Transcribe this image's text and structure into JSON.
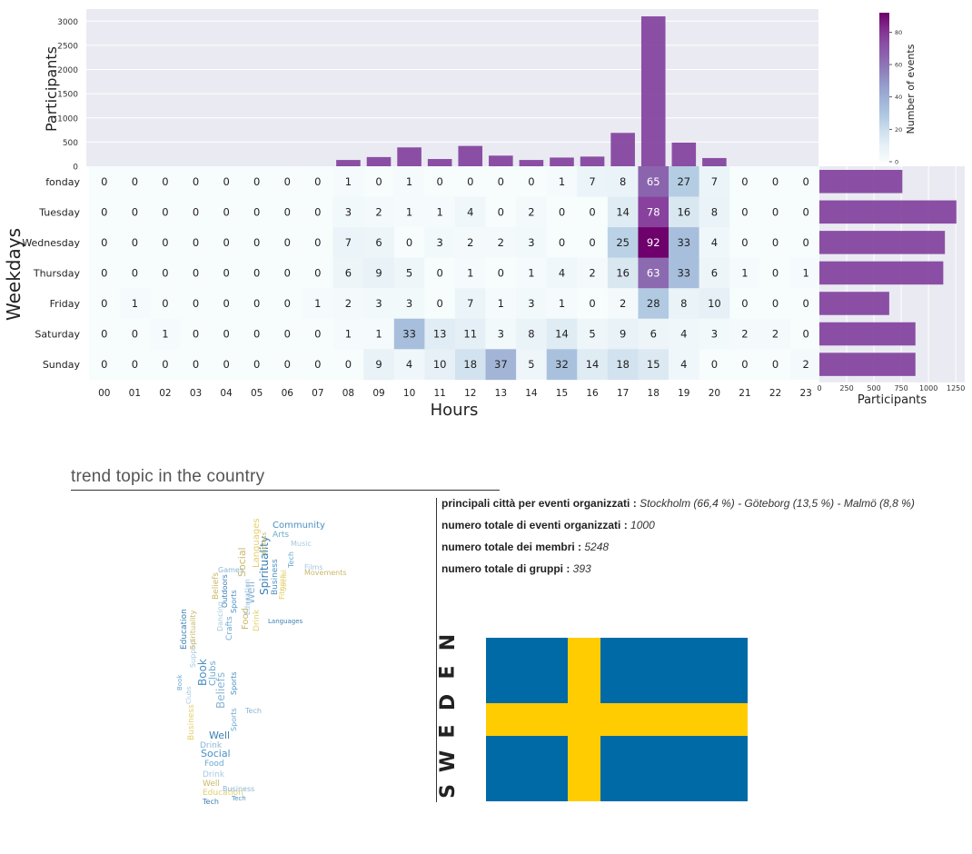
{
  "chart_data": {
    "type": "heatmap",
    "xlabel": "Hours",
    "ylabel": "Weekdays",
    "hours": [
      "00",
      "01",
      "02",
      "03",
      "04",
      "05",
      "06",
      "07",
      "08",
      "09",
      "10",
      "11",
      "12",
      "13",
      "14",
      "15",
      "16",
      "17",
      "18",
      "19",
      "20",
      "21",
      "22",
      "23"
    ],
    "weekday_labels": [
      "fonday",
      "Tuesday",
      "Wednesday",
      "Thursday",
      "Friday",
      "Saturday",
      "Sunday"
    ],
    "values": [
      [
        0,
        0,
        0,
        0,
        0,
        0,
        0,
        0,
        1,
        0,
        1,
        0,
        0,
        0,
        0,
        1,
        7,
        8,
        65,
        27,
        7,
        0,
        0,
        0
      ],
      [
        0,
        0,
        0,
        0,
        0,
        0,
        0,
        0,
        3,
        2,
        1,
        1,
        4,
        0,
        2,
        0,
        0,
        14,
        78,
        16,
        8,
        0,
        0,
        0
      ],
      [
        0,
        0,
        0,
        0,
        0,
        0,
        0,
        0,
        7,
        6,
        0,
        3,
        2,
        2,
        3,
        0,
        0,
        25,
        92,
        33,
        4,
        0,
        0,
        0
      ],
      [
        0,
        0,
        0,
        0,
        0,
        0,
        0,
        0,
        6,
        9,
        5,
        0,
        1,
        0,
        1,
        4,
        2,
        16,
        63,
        33,
        6,
        1,
        0,
        1
      ],
      [
        0,
        1,
        0,
        0,
        0,
        0,
        0,
        1,
        2,
        3,
        3,
        0,
        7,
        1,
        3,
        1,
        0,
        2,
        28,
        8,
        10,
        0,
        0,
        0
      ],
      [
        0,
        0,
        1,
        0,
        0,
        0,
        0,
        0,
        1,
        1,
        33,
        13,
        11,
        3,
        8,
        14,
        5,
        9,
        6,
        4,
        3,
        2,
        2,
        0
      ],
      [
        0,
        0,
        0,
        0,
        0,
        0,
        0,
        0,
        0,
        9,
        4,
        10,
        18,
        37,
        5,
        32,
        14,
        18,
        15,
        4,
        0,
        0,
        0,
        2
      ]
    ],
    "colorbar": {
      "label": "Number of events",
      "ticks": [
        0,
        20,
        40,
        60,
        80
      ],
      "min": 0,
      "max": 92
    },
    "top_bar": {
      "ylabel": "Participants",
      "yticks": [
        0,
        500,
        1000,
        1500,
        2000,
        2500,
        3000
      ],
      "ymax": 3250,
      "values": [
        0,
        0,
        0,
        0,
        0,
        0,
        0,
        0,
        130,
        190,
        390,
        150,
        420,
        220,
        130,
        180,
        200,
        690,
        3100,
        490,
        170,
        0,
        0,
        0
      ]
    },
    "side_bar": {
      "xlabel": "Participants",
      "xticks": [
        0,
        250,
        500,
        750,
        1000,
        1250
      ],
      "xmax": 1290,
      "values": [
        760,
        1255,
        1150,
        1135,
        640,
        880,
        880
      ]
    },
    "colors": {
      "bar": "#85479f",
      "bg": "#eaeaf2",
      "grid": "#ffffff"
    }
  },
  "trend": {
    "title": "trend topic in the country"
  },
  "stats": [
    {
      "label": "principali città per eventi organizzati :",
      "value": "Stockholm (66,4 %) - Göteborg (13,5 %) - Malmö (8,8 %)"
    },
    {
      "label": "numero totale di eventi organizzati :",
      "value": "1000"
    },
    {
      "label": "numero totale dei membri :",
      "value": "5248"
    },
    {
      "label": "numero totale di gruppi :",
      "value": "393"
    }
  ],
  "country": {
    "letters": [
      "S",
      "W",
      "E",
      "D",
      "E",
      "N"
    ]
  },
  "flag": {
    "blue": "#006aa7",
    "yellow": "#fecc00"
  },
  "wordcloud": {
    "words": [
      "Community",
      "Arts",
      "Music",
      "Social",
      "Languages",
      "Spirituality",
      "Well",
      "Business",
      "Tech",
      "Films",
      "Movements",
      "Fitness",
      "Outdoors",
      "Games",
      "Sports",
      "Crafts",
      "Dancing",
      "Food",
      "Drink",
      "Education",
      "Beliefs",
      "Book",
      "Clubs",
      "Support",
      "Spirituality",
      "Business",
      "Well",
      "Drink",
      "Social",
      "Food",
      "Drink",
      "Well",
      "Education",
      "Tech",
      "Tech",
      "Sports",
      "Sports",
      "Education",
      "Beliefs",
      "Social",
      "Languages",
      "Business",
      "Tech",
      "Book",
      "Clubs",
      "Fitness"
    ]
  }
}
